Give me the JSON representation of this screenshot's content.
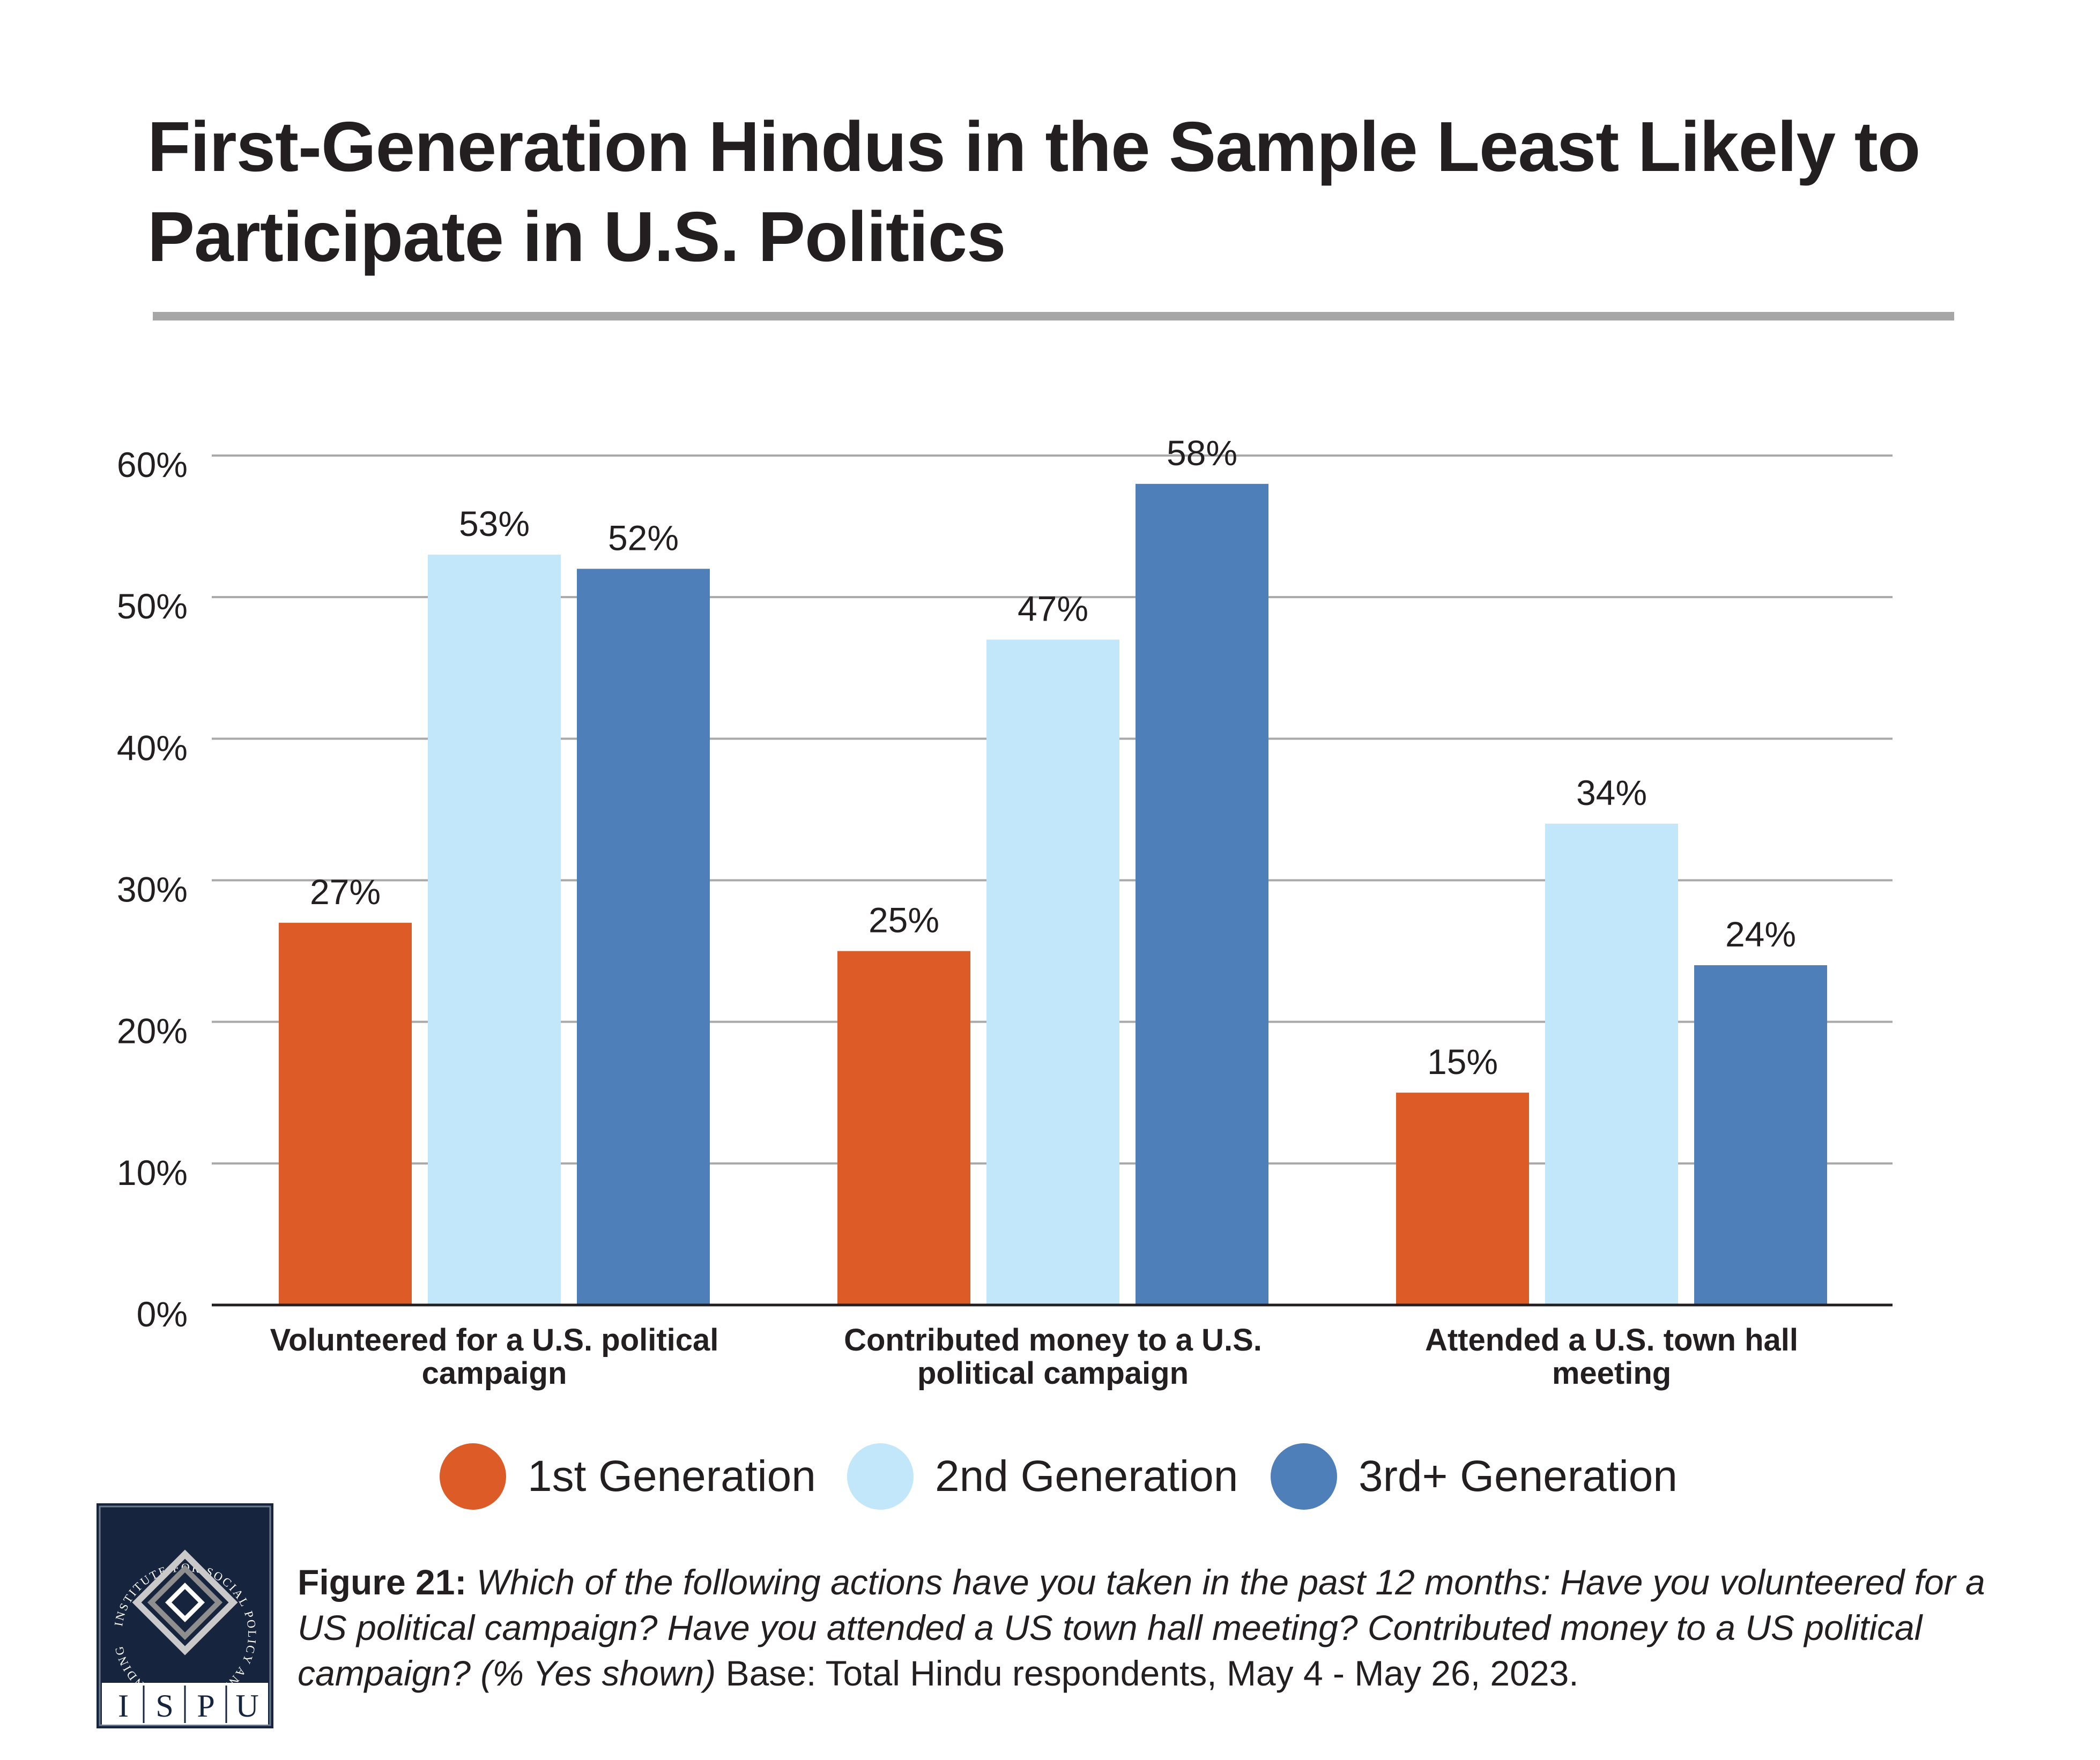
{
  "title": "First-Generation Hindus in the Sample Least Likely to Participate in U.S. Politics",
  "chart_data": {
    "type": "bar",
    "categories": [
      "Volunteered for a U.S. political campaign",
      "Contributed money to a U.S. political campaign",
      "Attended a U.S. town hall meeting"
    ],
    "series": [
      {
        "name": "1st Generation",
        "color": "#dd5b26",
        "values": [
          27,
          25,
          15
        ],
        "labels": [
          "27%",
          "25%",
          "15%"
        ]
      },
      {
        "name": "2nd Generation",
        "color": "#c2e7fa",
        "values": [
          53,
          47,
          34
        ],
        "labels": [
          "53%",
          "47%",
          "34%"
        ]
      },
      {
        "name": "3rd+ Generation",
        "color": "#4f7fb8",
        "values": [
          52,
          58,
          24
        ],
        "labels": [
          "52%",
          "58%",
          "24%"
        ]
      }
    ],
    "ylim": [
      0,
      60
    ],
    "yticks": [
      0,
      10,
      20,
      30,
      40,
      50,
      60
    ],
    "ytick_labels": [
      "0%",
      "10%",
      "20%",
      "30%",
      "40%",
      "50%",
      "60%"
    ],
    "grid": true,
    "legend_position": "bottom"
  },
  "logo": {
    "ring_text": "INSTITUTE FOR SOCIAL POLICY AND UNDERSTANDING",
    "letters": [
      "I",
      "S",
      "P",
      "U"
    ]
  },
  "caption": {
    "figure_label": "Figure 21:",
    "question": "Which of the following actions have you taken in the past 12 months: Have you volunteered for a US political campaign? Have you attended a US town hall meeting? Contributed money to a US political campaign? (% Yes shown)",
    "base": "Base: Total Hindu respondents, May 4 - May 26, 2023."
  }
}
